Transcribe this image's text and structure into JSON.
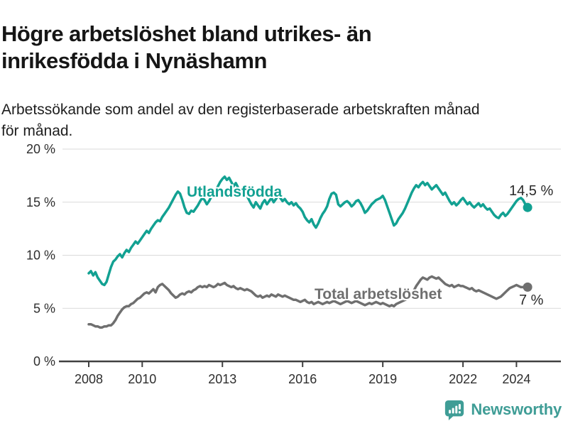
{
  "header": {
    "title_lines": [
      "Högre arbetslöshet bland utrikes- än",
      "inrikesfödda i Nynäshamn"
    ],
    "subtitle_lines": [
      "Arbetssökande som andel av den registerbaserade arbetskraften månad",
      "för månad."
    ]
  },
  "chart_data": {
    "type": "line",
    "title": "Högre arbetslöshet bland utrikes- än inrikesfödda i Nynäshamn",
    "subtitle": "Arbetssökande som andel av den registerbaserade arbetskraften månad för månad.",
    "unit": "%",
    "x_start_year": 2008,
    "x_step": "month",
    "x_ticks": [
      2008,
      2010,
      2013,
      2016,
      2019,
      2022,
      2024
    ],
    "y_ticks": [
      0,
      5,
      10,
      15,
      20
    ],
    "y_tick_labels": [
      "0 %",
      "5 %",
      "10 %",
      "15 %",
      "20 %"
    ],
    "ylim": [
      0,
      20
    ],
    "grid": "horizontal",
    "colors": {
      "grid": "#d9d9d9",
      "axis": "#404040",
      "tick_text": "#2e2e2e"
    },
    "series": [
      {
        "name": "Utlandsfödda",
        "color": "#12a192",
        "end_label": "14,5 %",
        "values": [
          8.3,
          8.5,
          8.1,
          8.4,
          7.9,
          7.6,
          7.3,
          7.2,
          7.5,
          8.2,
          8.9,
          9.4,
          9.6,
          9.9,
          10.1,
          9.8,
          10.2,
          10.5,
          10.3,
          10.7,
          11.0,
          11.3,
          11.1,
          11.4,
          11.7,
          12.0,
          12.3,
          12.1,
          12.5,
          12.8,
          13.1,
          13.3,
          13.2,
          13.6,
          13.9,
          14.2,
          14.5,
          14.9,
          15.3,
          15.7,
          16.0,
          15.8,
          15.2,
          14.5,
          14.0,
          13.9,
          14.2,
          14.1,
          14.4,
          14.7,
          15.1,
          15.4,
          15.2,
          14.8,
          15.1,
          15.5,
          15.8,
          16.1,
          16.5,
          16.9,
          17.2,
          17.4,
          17.1,
          17.3,
          16.9,
          16.5,
          16.8,
          16.4,
          16.0,
          16.3,
          15.9,
          15.6,
          15.2,
          14.8,
          14.5,
          15.0,
          14.7,
          14.4,
          14.9,
          15.2,
          14.8,
          15.1,
          15.4,
          15.0,
          15.3,
          15.6,
          15.4,
          15.1,
          15.3,
          15.0,
          14.8,
          15.0,
          14.7,
          14.9,
          14.6,
          14.4,
          14.1,
          13.6,
          13.3,
          13.1,
          13.4,
          12.9,
          12.6,
          13.0,
          13.5,
          13.9,
          14.2,
          14.6,
          15.3,
          15.8,
          15.9,
          15.7,
          14.8,
          14.6,
          14.8,
          15.0,
          15.1,
          14.9,
          14.6,
          14.8,
          15.1,
          15.2,
          14.9,
          14.5,
          14.0,
          14.2,
          14.5,
          14.8,
          15.0,
          15.2,
          15.3,
          15.4,
          15.6,
          15.2,
          14.6,
          14.0,
          13.4,
          12.8,
          13.0,
          13.4,
          13.7,
          14.0,
          14.4,
          14.9,
          15.4,
          15.9,
          16.3,
          16.6,
          16.4,
          16.7,
          16.9,
          16.6,
          16.8,
          16.5,
          16.2,
          16.4,
          16.6,
          16.3,
          16.0,
          15.7,
          15.9,
          15.5,
          15.1,
          14.8,
          15.0,
          14.7,
          14.9,
          15.2,
          15.4,
          15.1,
          14.8,
          15.0,
          14.7,
          14.5,
          14.7,
          14.9,
          14.6,
          14.8,
          14.5,
          14.3,
          14.4,
          14.1,
          13.8,
          13.6,
          13.5,
          13.8,
          14.0,
          13.7,
          13.9,
          14.2,
          14.5,
          14.8,
          15.1,
          15.3,
          15.4,
          15.2,
          14.8,
          14.5
        ]
      },
      {
        "name": "Total arbetslöshet",
        "color": "#6f6f6f",
        "end_label": "7 %",
        "values": [
          3.5,
          3.5,
          3.4,
          3.3,
          3.3,
          3.2,
          3.2,
          3.3,
          3.3,
          3.4,
          3.4,
          3.6,
          3.9,
          4.3,
          4.6,
          4.9,
          5.1,
          5.2,
          5.2,
          5.4,
          5.5,
          5.7,
          5.9,
          6.0,
          6.2,
          6.4,
          6.5,
          6.4,
          6.6,
          6.8,
          6.5,
          7.0,
          7.2,
          7.3,
          7.1,
          6.9,
          6.7,
          6.4,
          6.2,
          6.0,
          6.1,
          6.3,
          6.4,
          6.3,
          6.5,
          6.6,
          6.5,
          6.7,
          6.8,
          7.0,
          7.1,
          7.0,
          7.1,
          7.0,
          7.2,
          7.1,
          7.0,
          7.1,
          7.3,
          7.2,
          7.3,
          7.4,
          7.2,
          7.1,
          7.0,
          7.1,
          6.9,
          6.8,
          6.9,
          6.8,
          6.7,
          6.8,
          6.7,
          6.6,
          6.4,
          6.2,
          6.1,
          6.2,
          6.0,
          6.1,
          6.2,
          6.1,
          6.3,
          6.2,
          6.1,
          6.3,
          6.2,
          6.1,
          6.2,
          6.1,
          6.0,
          5.9,
          5.8,
          5.8,
          5.7,
          5.6,
          5.7,
          5.8,
          5.6,
          5.5,
          5.6,
          5.4,
          5.5,
          5.6,
          5.5,
          5.4,
          5.5,
          5.6,
          5.5,
          5.6,
          5.7,
          5.6,
          5.5,
          5.4,
          5.5,
          5.6,
          5.7,
          5.6,
          5.5,
          5.6,
          5.7,
          5.6,
          5.5,
          5.4,
          5.3,
          5.4,
          5.5,
          5.4,
          5.5,
          5.6,
          5.5,
          5.4,
          5.5,
          5.4,
          5.3,
          5.2,
          5.3,
          5.2,
          5.4,
          5.5,
          5.6,
          5.7,
          5.8,
          5.9,
          6.1,
          6.3,
          6.7,
          7.1,
          7.4,
          7.7,
          7.9,
          7.8,
          7.7,
          7.9,
          8.0,
          7.9,
          7.8,
          7.9,
          7.7,
          7.5,
          7.3,
          7.2,
          7.1,
          7.2,
          7.0,
          7.1,
          7.2,
          7.1,
          7.1,
          7.0,
          6.9,
          6.8,
          6.9,
          6.7,
          6.6,
          6.7,
          6.6,
          6.5,
          6.4,
          6.3,
          6.2,
          6.1,
          6.0,
          5.9,
          6.0,
          6.1,
          6.3,
          6.5,
          6.7,
          6.9,
          7.0,
          7.1,
          7.2,
          7.1,
          7.0,
          7.0,
          6.9,
          7.0
        ]
      }
    ]
  },
  "footer": {
    "brand": "Newsworthy",
    "brand_color": "#3f9d96"
  }
}
